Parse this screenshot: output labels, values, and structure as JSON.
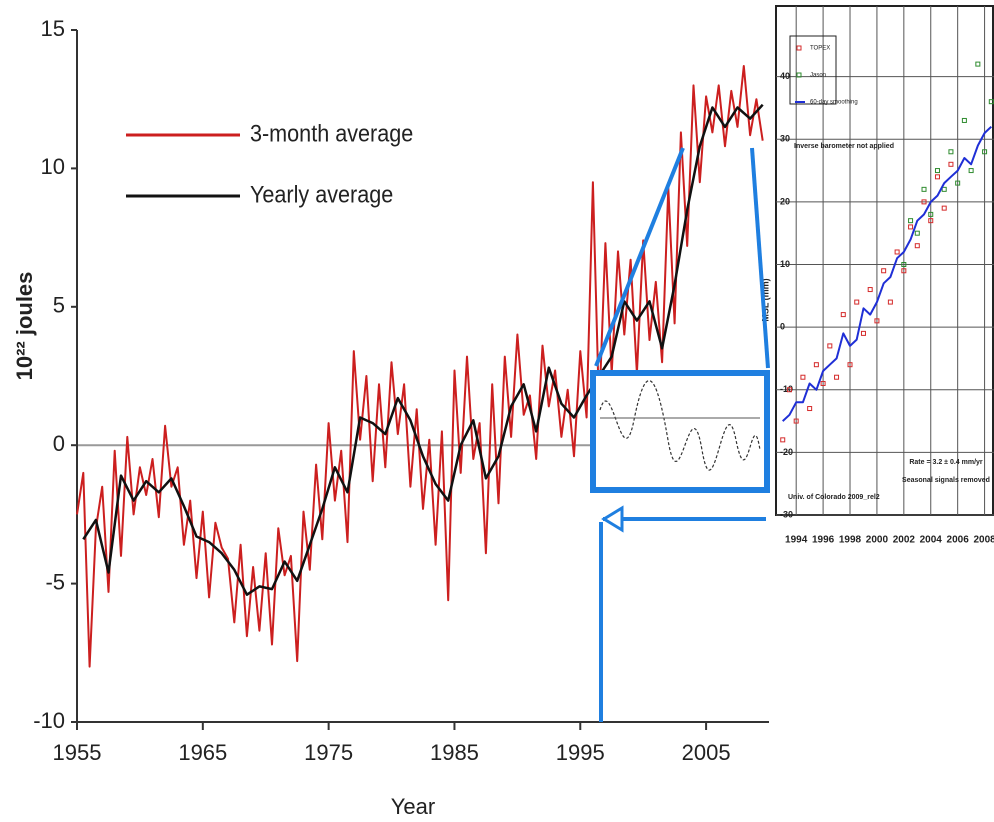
{
  "chart_data": [
    {
      "type": "line",
      "x_label": "Year",
      "y_label": "10²² joules",
      "xlim": [
        1955,
        2010
      ],
      "ylim": [
        -10,
        15
      ],
      "xticks": [
        1955,
        1965,
        1975,
        1985,
        1995,
        2005
      ],
      "yticks": [
        -10,
        -5,
        0,
        5,
        10,
        15
      ],
      "legend": "upper left",
      "series": [
        {
          "name": "3-month average",
          "color": "#cc1f1f",
          "x": [
            1955,
            1955.5,
            1956,
            1956.5,
            1957,
            1957.5,
            1958,
            1958.5,
            1959,
            1959.5,
            1960,
            1960.5,
            1961,
            1961.5,
            1962,
            1962.5,
            1963,
            1963.5,
            1964,
            1964.5,
            1965,
            1965.5,
            1966,
            1966.5,
            1967,
            1967.5,
            1968,
            1968.5,
            1969,
            1969.5,
            1970,
            1970.5,
            1971,
            1971.5,
            1972,
            1972.5,
            1973,
            1973.5,
            1974,
            1974.5,
            1975,
            1975.5,
            1976,
            1976.5,
            1977,
            1977.5,
            1978,
            1978.5,
            1979,
            1979.5,
            1980,
            1980.5,
            1981,
            1981.5,
            1982,
            1982.5,
            1983,
            1983.5,
            1984,
            1984.5,
            1985,
            1985.5,
            1986,
            1986.5,
            1987,
            1987.5,
            1988,
            1988.5,
            1989,
            1989.5,
            1990,
            1990.5,
            1991,
            1991.5,
            1992,
            1992.5,
            1993,
            1993.5,
            1994,
            1994.5,
            1995,
            1995.5,
            1996,
            1996.5,
            1997,
            1997.5,
            1998,
            1998.5,
            1999,
            1999.5,
            2000,
            2000.5,
            2001,
            2001.5,
            2002,
            2002.5,
            2003,
            2003.5,
            2004,
            2004.5,
            2005,
            2005.5,
            2006,
            2006.5,
            2007,
            2007.5,
            2008,
            2008.5,
            2009,
            2009.5
          ],
          "values": [
            -2.5,
            -1.0,
            -8.0,
            -3.0,
            -1.5,
            -5.3,
            -0.2,
            -4.0,
            0.3,
            -2.5,
            -0.8,
            -1.8,
            -0.5,
            -2.6,
            0.7,
            -1.5,
            -0.8,
            -3.6,
            -2.0,
            -4.8,
            -2.4,
            -5.5,
            -2.8,
            -3.7,
            -4.1,
            -6.4,
            -3.6,
            -6.9,
            -4.4,
            -6.7,
            -3.9,
            -7.2,
            -3.0,
            -4.7,
            -4.0,
            -7.8,
            -2.4,
            -4.5,
            -0.7,
            -3.4,
            0.8,
            -2.0,
            -0.2,
            -3.5,
            3.4,
            0.2,
            2.5,
            -1.3,
            2.2,
            -0.8,
            3.0,
            0.4,
            2.2,
            -1.5,
            1.3,
            -2.3,
            0.2,
            -3.6,
            0.5,
            -5.6,
            2.7,
            -1.0,
            3.2,
            -0.5,
            0.8,
            -3.9,
            2.2,
            -2.1,
            3.2,
            0.3,
            4.0,
            1.1,
            1.8,
            -0.5,
            3.6,
            1.4,
            2.7,
            0.3,
            2.0,
            -0.4,
            3.4,
            1.0,
            9.5,
            1.2,
            7.3,
            2.6,
            7.0,
            4.0,
            6.7,
            2.6,
            7.4,
            3.8,
            5.9,
            3.0,
            9.3,
            4.4,
            11.3,
            7.2,
            13.0,
            9.5,
            12.6,
            11.3,
            13.0,
            10.8,
            12.8,
            11.5,
            13.7,
            11.2,
            12.5,
            11.0
          ]
        },
        {
          "name": "Yearly average",
          "color": "#111111",
          "x": [
            1955.5,
            1956.5,
            1957.5,
            1958.5,
            1959.5,
            1960.5,
            1961.5,
            1962.5,
            1963.5,
            1964.5,
            1965.5,
            1966.5,
            1967.5,
            1968.5,
            1969.5,
            1970.5,
            1971.5,
            1972.5,
            1973.5,
            1974.5,
            1975.5,
            1976.5,
            1977.5,
            1978.5,
            1979.5,
            1980.5,
            1981.5,
            1982.5,
            1983.5,
            1984.5,
            1985.5,
            1986.5,
            1987.5,
            1988.5,
            1989.5,
            1990.5,
            1991.5,
            1992.5,
            1993.5,
            1994.5,
            1995.5,
            1996.5,
            1997.5,
            1998.5,
            1999.5,
            2000.5,
            2001.5,
            2002.5,
            2003.5,
            2004.5,
            2005.5,
            2006.5,
            2007.5,
            2008.5,
            2009.5
          ],
          "values": [
            -3.4,
            -2.7,
            -4.6,
            -1.1,
            -2.0,
            -1.3,
            -1.7,
            -1.2,
            -2.2,
            -3.3,
            -3.5,
            -3.9,
            -4.5,
            -5.4,
            -5.1,
            -5.2,
            -4.2,
            -4.9,
            -3.6,
            -2.3,
            -0.8,
            -1.7,
            1.0,
            0.8,
            0.4,
            1.7,
            0.9,
            -0.4,
            -1.4,
            -2.0,
            0.0,
            0.9,
            -1.2,
            -0.4,
            1.4,
            2.2,
            0.5,
            2.8,
            1.5,
            1.0,
            1.8,
            2.5,
            3.2,
            5.2,
            4.5,
            5.2,
            3.5,
            5.8,
            8.5,
            10.8,
            12.2,
            11.5,
            12.2,
            11.8,
            12.3
          ]
        }
      ]
    },
    {
      "type": "scatter",
      "y_label": "MSL (mm)",
      "xlim": [
        1992.5,
        2008.7
      ],
      "ylim": [
        -30,
        50
      ],
      "xticks": [
        1994,
        1996,
        1998,
        2000,
        2002,
        2004,
        2006,
        2008
      ],
      "yticks": [
        -30,
        -20,
        -10,
        0,
        10,
        20,
        30,
        40
      ],
      "grid": true,
      "legend": "upper left",
      "annotations": [
        "Inverse barometer not applied",
        "Rate = 3.2 ± 0.4 mm/yr",
        "Seasonal signals removed",
        "Univ. of Colorado 2009_rel2"
      ],
      "series": [
        {
          "name": "TOPEX",
          "color": "#d42a2a",
          "kind": "marker",
          "x": [
            1993,
            1993.5,
            1994,
            1994.5,
            1995,
            1995.5,
            1996,
            1996.5,
            1997,
            1997.5,
            1998,
            1998.5,
            1999,
            1999.5,
            2000,
            2000.5,
            2001,
            2001.5,
            2002,
            2002.5,
            2003,
            2003.5,
            2004,
            2004.5,
            2005,
            2005.5
          ],
          "values": [
            -18,
            -10,
            -15,
            -8,
            -13,
            -6,
            -9,
            -3,
            -8,
            2,
            -6,
            4,
            -1,
            6,
            1,
            9,
            4,
            12,
            9,
            16,
            13,
            20,
            17,
            24,
            19,
            26
          ]
        },
        {
          "name": "Jason",
          "color": "#2e8b2e",
          "kind": "marker",
          "x": [
            2002,
            2002.5,
            2003,
            2003.5,
            2004,
            2004.5,
            2005,
            2005.5,
            2006,
            2006.5,
            2007,
            2007.5,
            2008,
            2008.5
          ],
          "values": [
            10,
            17,
            15,
            22,
            18,
            25,
            22,
            28,
            23,
            33,
            25,
            42,
            28,
            36
          ]
        },
        {
          "name": "60-day smoothing",
          "color": "#1f2fd6",
          "kind": "line",
          "x": [
            1993,
            1993.5,
            1994,
            1994.5,
            1995,
            1995.5,
            1996,
            1996.5,
            1997,
            1997.5,
            1998,
            1998.5,
            1999,
            1999.5,
            2000,
            2000.5,
            2001,
            2001.5,
            2002,
            2002.5,
            2003,
            2003.5,
            2004,
            2004.5,
            2005,
            2005.5,
            2006,
            2006.5,
            2007,
            2007.5,
            2008,
            2008.5
          ],
          "values": [
            -15,
            -14,
            -12,
            -12,
            -9,
            -10,
            -7,
            -6,
            -5,
            -1,
            -3,
            -2,
            3,
            2,
            4,
            7,
            8,
            11,
            12,
            14,
            17,
            18,
            20,
            21,
            23,
            24,
            25,
            27,
            26,
            29,
            31,
            32
          ]
        }
      ]
    }
  ]
}
